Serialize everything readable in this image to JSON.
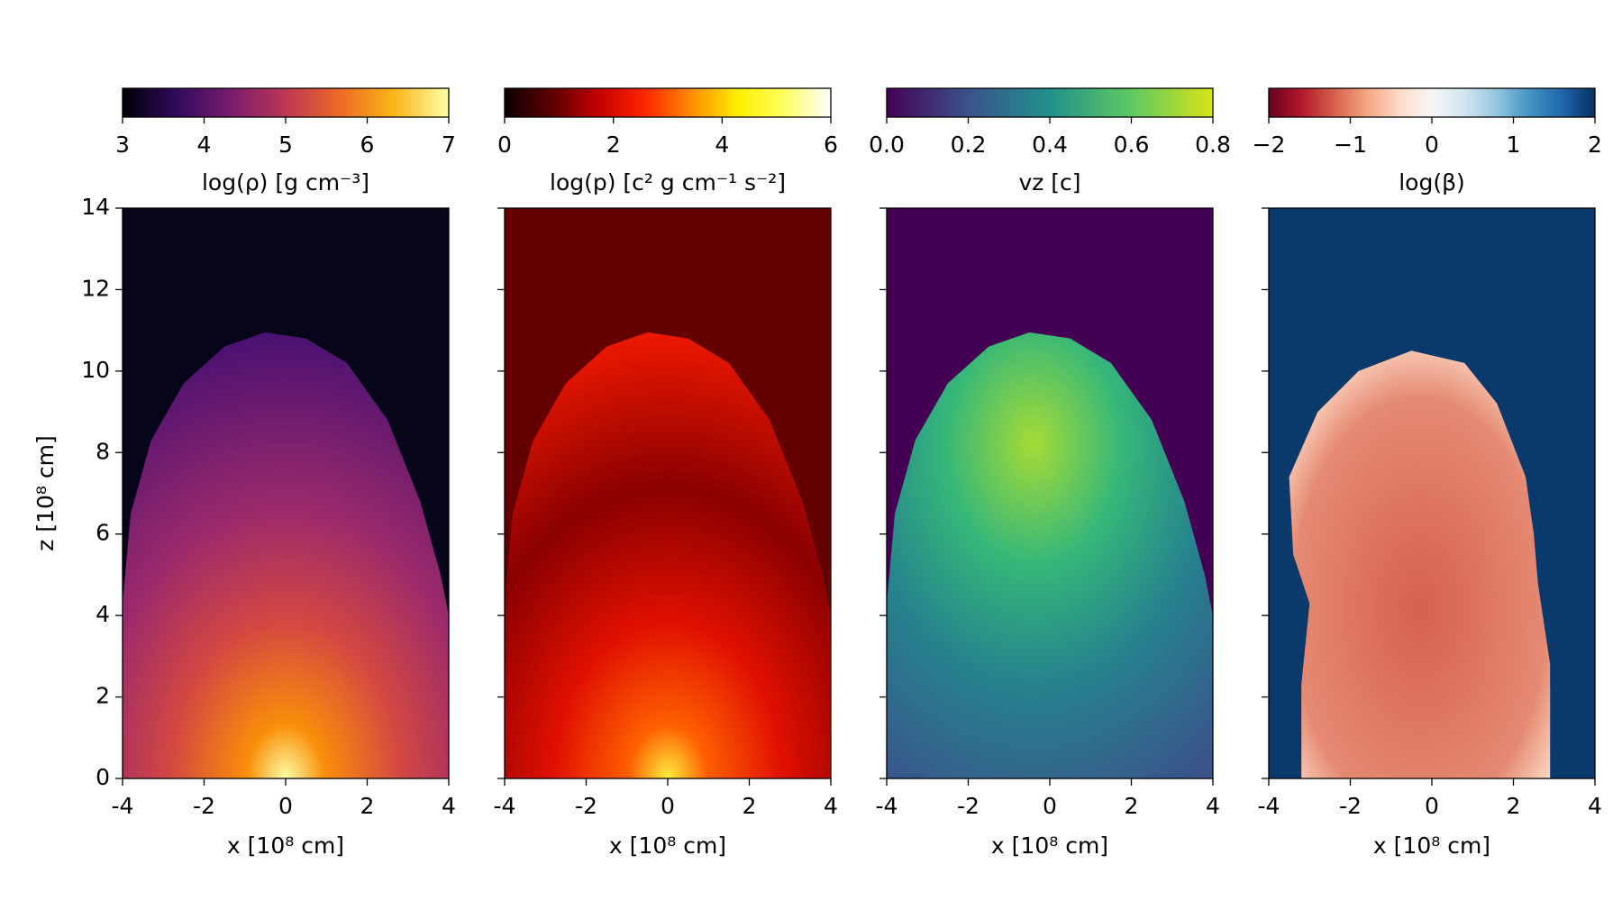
{
  "chart_data": [
    {
      "type": "image",
      "colormap": [
        "#000004",
        "#320a5e",
        "#781c6d",
        "#bc3754",
        "#ed6925",
        "#fbb61a",
        "#fcffa4"
      ],
      "clim": [
        3,
        7
      ],
      "cticks": [
        3,
        4,
        5,
        6,
        7
      ],
      "clabel": "log(ρ) [g cm⁻³]",
      "xlim": [
        -4,
        4
      ],
      "xticks": [
        -4,
        -2,
        0,
        2,
        4
      ],
      "xlabel": "x [10⁸ cm]",
      "ylim": [
        0,
        14
      ],
      "yticks": [
        0,
        2,
        4,
        6,
        8,
        10,
        12,
        14
      ],
      "ylabel": "z [10⁸ cm]"
    },
    {
      "type": "image",
      "colormap": [
        "#0b0000",
        "#5c0000",
        "#c00000",
        "#ff2500",
        "#ff8a00",
        "#ffee00",
        "#ffff60",
        "#ffffff"
      ],
      "clim": [
        0,
        6
      ],
      "cticks": [
        0,
        2,
        4,
        6
      ],
      "clabel": "log(p) [c² g cm⁻¹ s⁻²]",
      "xlim": [
        -4,
        4
      ],
      "xticks": [
        -4,
        -2,
        0,
        2,
        4
      ],
      "xlabel": "x [10⁸ cm]",
      "ylim": [
        0,
        14
      ],
      "yticks": [
        0,
        2,
        4,
        6,
        8,
        10,
        12,
        14
      ]
    },
    {
      "type": "image",
      "colormap": [
        "#440154",
        "#3b528b",
        "#21918c",
        "#5ec962",
        "#d8e219"
      ],
      "clim": [
        0,
        0.8
      ],
      "cticks": [
        {
          "value": 0,
          "label": "0.0"
        },
        0.2,
        0.4,
        0.6,
        0.8
      ],
      "clabel": "vz [c]",
      "xlim": [
        -4,
        4
      ],
      "xticks": [
        -4,
        -2,
        0,
        2,
        4
      ],
      "xlabel": "x [10⁸ cm]",
      "ylim": [
        0,
        14
      ],
      "yticks": [
        0,
        2,
        4,
        6,
        8,
        10,
        12,
        14
      ]
    },
    {
      "type": "image",
      "colormap": [
        "#67001f",
        "#b2182b",
        "#d6604d",
        "#f4a582",
        "#fddbc7",
        "#f7f7f7",
        "#d1e5f0",
        "#92c5de",
        "#4393c3",
        "#2166ac",
        "#053061"
      ],
      "clim": [
        -2,
        2
      ],
      "cticks": [
        {
          "value": -2,
          "label": "−2"
        },
        {
          "value": -1,
          "label": "−1"
        },
        0,
        1,
        2
      ],
      "clabel": "log(β)",
      "xlim": [
        -4,
        4
      ],
      "xticks": [
        -4,
        -2,
        0,
        2,
        4
      ],
      "xlabel": "x [10⁸ cm]",
      "ylim": [
        0,
        14
      ],
      "yticks": [
        0,
        2,
        4,
        6,
        8,
        10,
        12,
        14
      ]
    }
  ]
}
